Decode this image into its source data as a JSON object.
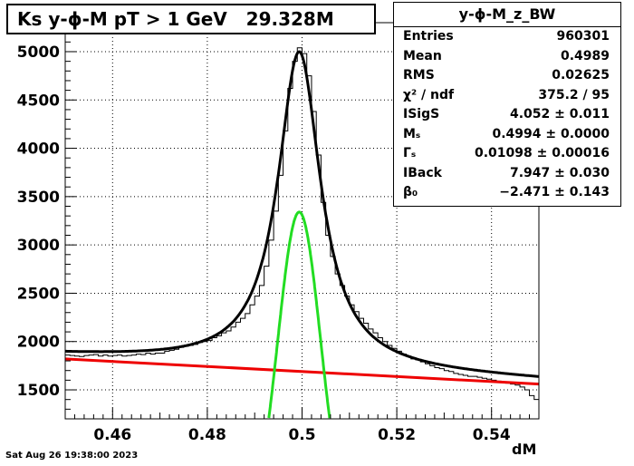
{
  "chart_title": "Ks y-ϕ-M pT > 1 GeV   29.328M",
  "stats": {
    "name": "y-ϕ-M_z_BW",
    "rows": [
      {
        "label": "Entries",
        "value": "960301"
      },
      {
        "label": "Mean",
        "value": "0.4989"
      },
      {
        "label": "RMS",
        "value": "0.02625"
      },
      {
        "label": "χ² / ndf",
        "value": "375.2 / 95"
      },
      {
        "label": "ISigS",
        "value": "4.052 ± 0.011"
      },
      {
        "label": "Mₛ",
        "value": "0.4994 ± 0.0000"
      },
      {
        "label": "Γₛ",
        "value": "0.01098 ± 0.00016"
      },
      {
        "label": "IBack",
        "value": "7.947 ± 0.030"
      },
      {
        "label": "β₀",
        "value": "−2.471 ± 0.143"
      }
    ]
  },
  "timestamp": "Sat Aug 26 19:38:00 2023",
  "chart_data": {
    "type": "line",
    "xlabel": "dM",
    "ylabel": "",
    "xlim": [
      0.45,
      0.55
    ],
    "ylim": [
      1200,
      5300
    ],
    "grid": true,
    "x_ticks": [
      "0.46",
      "0.48",
      "0.5",
      "0.52",
      "0.54"
    ],
    "y_ticks": [
      "1500",
      "2000",
      "2500",
      "3000",
      "3500",
      "4000",
      "4500",
      "5000"
    ],
    "colors": {
      "histogram": "#000000",
      "total_fit": "#000000",
      "background": "#ee0000",
      "signal": "#22dd22"
    },
    "series": [
      {
        "role": "histogram",
        "bin_width": 0.001,
        "x_start": 0.45,
        "values": [
          1860,
          1855,
          1850,
          1845,
          1855,
          1860,
          1865,
          1850,
          1860,
          1850,
          1855,
          1860,
          1850,
          1855,
          1860,
          1870,
          1865,
          1880,
          1870,
          1880,
          1880,
          1900,
          1910,
          1920,
          1940,
          1950,
          1960,
          1970,
          1990,
          2000,
          2010,
          2040,
          2060,
          2090,
          2110,
          2150,
          2200,
          2240,
          2290,
          2380,
          2470,
          2580,
          2780,
          3050,
          3350,
          3720,
          4180,
          4620,
          4900,
          5040,
          4980,
          4750,
          4380,
          3930,
          3440,
          3100,
          2880,
          2700,
          2580,
          2470,
          2380,
          2310,
          2240,
          2190,
          2130,
          2090,
          2040,
          2000,
          1960,
          1930,
          1900,
          1870,
          1850,
          1820,
          1810,
          1790,
          1770,
          1750,
          1730,
          1720,
          1700,
          1690,
          1670,
          1660,
          1650,
          1640,
          1640,
          1630,
          1620,
          1610,
          1600,
          1590,
          1580,
          1570,
          1560,
          1550,
          1530,
          1500,
          1440,
          1400
        ]
      },
      {
        "role": "total_fit",
        "M": 0.4994,
        "Gamma": 0.01098,
        "peak": 5000,
        "base_at_M": 1682
      },
      {
        "role": "background",
        "line": [
          [
            0.45,
            1820
          ],
          [
            0.55,
            1560
          ]
        ]
      },
      {
        "role": "signal",
        "M": 0.4994,
        "sigma": 0.0045,
        "peak": 3340
      }
    ]
  }
}
